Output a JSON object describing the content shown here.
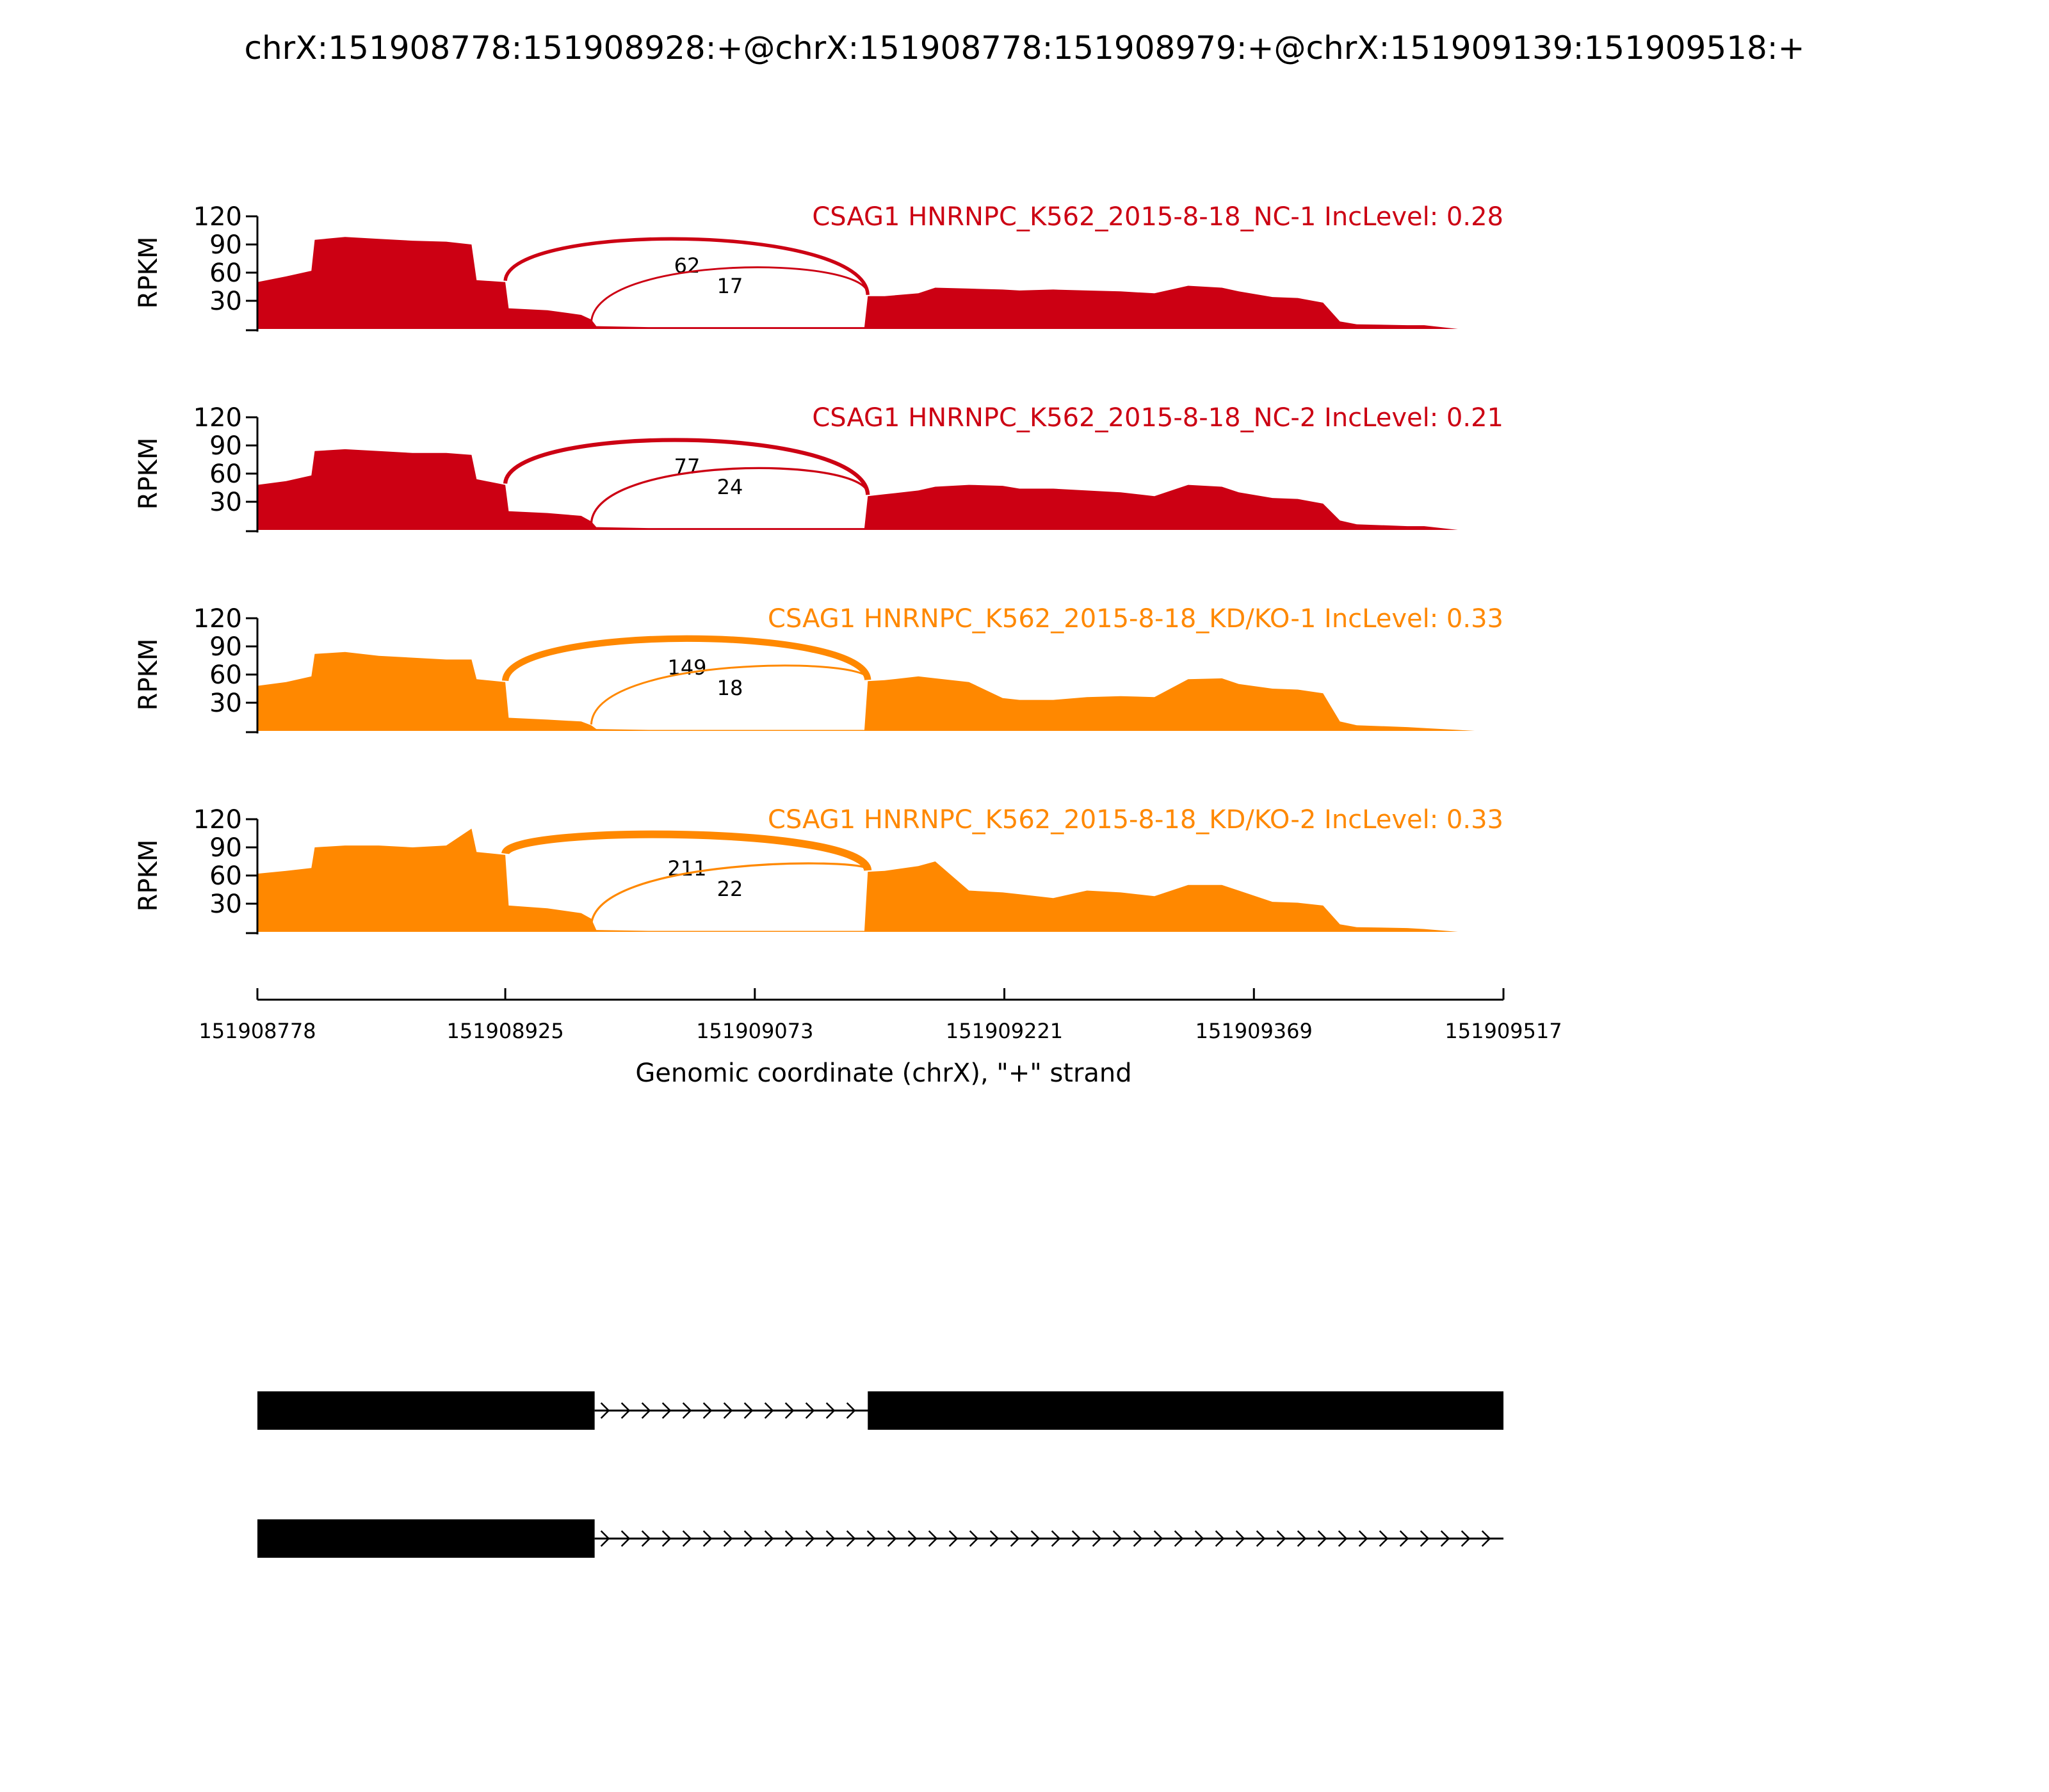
{
  "title": "chrX:151908778:151908928:+@chrX:151908778:151908979:+@chrX:151909139:151909518:+",
  "chart_data": {
    "type": "area",
    "title": "chrX:151908778:151908928:+@chrX:151908778:151908979:+@chrX:151909139:151909518:+",
    "xlabel": "Genomic coordinate (chrX), \"+\" strand",
    "ylabel": "RPKM",
    "xlim": [
      151908778,
      151909517
    ],
    "ylim": [
      0,
      120
    ],
    "xticks": [
      "151908778",
      "151908925",
      "151909073",
      "151909221",
      "151909369",
      "151909517"
    ],
    "yticks": [
      "30",
      "60",
      "90",
      "120"
    ],
    "grid": false,
    "x": [
      151908778,
      151908795,
      151908810,
      151908812,
      151908830,
      151908850,
      151908870,
      151908890,
      151908905,
      151908908,
      151908925,
      151908927,
      151908950,
      151908970,
      151908976,
      151908979,
      151909010,
      151909040,
      151909073,
      151909100,
      151909120,
      151909138,
      151909140,
      151909150,
      151909170,
      151909180,
      151909200,
      151909220,
      151909230,
      151909250,
      151909270,
      151909290,
      151909310,
      151909330,
      151909350,
      151909360,
      151909380,
      151909395,
      151909410,
      151909420,
      151909430,
      151909460,
      151909470,
      151909490,
      151909500,
      151909517
    ],
    "series": [
      {
        "name": "CSAG1 HNRNPC_K562_2015-8-18_NC-1 IncLevel: 0.28",
        "color": "#cc0013",
        "values": [
          50,
          56,
          62,
          95,
          98,
          96,
          94,
          93,
          90,
          52,
          50,
          22,
          20,
          15,
          10,
          3,
          2,
          2,
          2,
          2,
          2,
          2,
          35,
          35,
          38,
          44,
          43,
          42,
          41,
          42,
          41,
          40,
          38,
          46,
          44,
          40,
          34,
          33,
          28,
          8,
          5,
          4,
          4,
          0,
          0,
          0
        ],
        "junctions": [
          {
            "from": 151908925,
            "to": 151909140,
            "count": "62"
          },
          {
            "from": 151908976,
            "to": 151909140,
            "count": "17"
          }
        ]
      },
      {
        "name": "CSAG1 HNRNPC_K562_2015-8-18_NC-2 IncLevel: 0.21",
        "color": "#cc0013",
        "values": [
          48,
          52,
          58,
          84,
          86,
          84,
          82,
          82,
          80,
          54,
          48,
          20,
          18,
          15,
          9,
          3,
          2,
          2,
          2,
          2,
          2,
          2,
          36,
          38,
          42,
          46,
          48,
          47,
          44,
          44,
          42,
          40,
          36,
          48,
          46,
          40,
          34,
          33,
          28,
          10,
          6,
          4,
          4,
          0,
          0,
          0
        ],
        "junctions": [
          {
            "from": 151908925,
            "to": 151909140,
            "count": "77"
          },
          {
            "from": 151908976,
            "to": 151909140,
            "count": "24"
          }
        ]
      },
      {
        "name": "CSAG1 HNRNPC_K562_2015-8-18_KD/KO-1 IncLevel: 0.33",
        "color": "#ff8800",
        "values": [
          48,
          52,
          58,
          82,
          84,
          80,
          78,
          76,
          76,
          55,
          52,
          14,
          12,
          10,
          6,
          2,
          1,
          1,
          1,
          1,
          1,
          1,
          53,
          54,
          58,
          56,
          52,
          35,
          33,
          33,
          36,
          37,
          36,
          55,
          56,
          50,
          45,
          44,
          40,
          10,
          6,
          4,
          3,
          1,
          0,
          0
        ],
        "junctions": [
          {
            "from": 151908925,
            "to": 151909140,
            "count": "149"
          },
          {
            "from": 151908976,
            "to": 151909140,
            "count": "18"
          }
        ]
      },
      {
        "name": "CSAG1 HNRNPC_K562_2015-8-18_KD/KO-2 IncLevel: 0.33",
        "color": "#ff8800",
        "values": [
          62,
          65,
          68,
          90,
          92,
          92,
          90,
          92,
          110,
          85,
          82,
          28,
          25,
          20,
          14,
          2,
          1,
          1,
          1,
          1,
          1,
          1,
          64,
          65,
          70,
          75,
          44,
          42,
          40,
          36,
          44,
          42,
          38,
          50,
          50,
          44,
          32,
          31,
          28,
          8,
          5,
          4,
          3,
          0,
          0,
          0
        ],
        "junctions": [
          {
            "from": 151908925,
            "to": 151909140,
            "count": "211"
          },
          {
            "from": 151908976,
            "to": 151909140,
            "count": "22"
          }
        ]
      }
    ],
    "transcripts": [
      {
        "exons": [
          [
            151908778,
            151908978
          ],
          [
            151909140,
            151909517
          ]
        ],
        "strand": "+"
      },
      {
        "exons": [
          [
            151908778,
            151908978
          ]
        ],
        "strand": "+"
      }
    ]
  }
}
